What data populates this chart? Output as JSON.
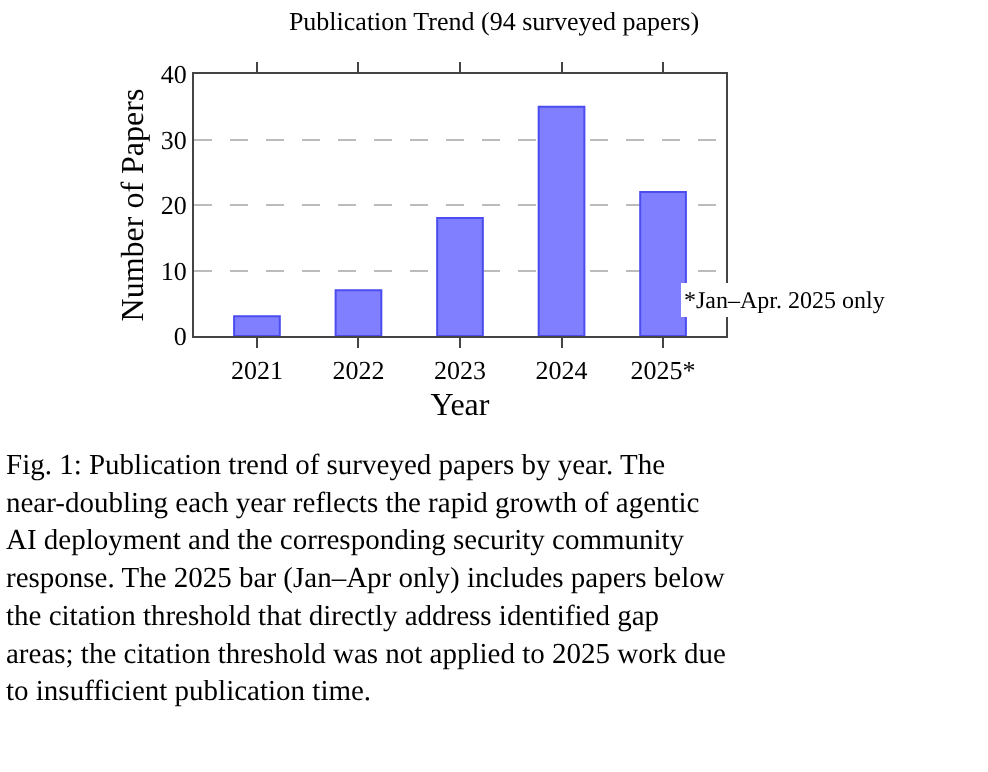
{
  "chart_data": {
    "type": "bar",
    "title": "Publication Trend (94 surveyed papers)",
    "xlabel": "Year",
    "ylabel": "Number of Papers",
    "categories": [
      "2021",
      "2022",
      "2023",
      "2024",
      "2025*"
    ],
    "values": [
      3,
      7,
      18,
      35,
      22
    ],
    "color": "#7f7fff",
    "ylim": [
      0,
      40
    ],
    "yticks": [
      0,
      10,
      20,
      30,
      40
    ],
    "grid": "y",
    "annotations": [
      "*Jan–Apr. 2025 only",
      "Fig. 1: Publication trend of surveyed papers by year. The near-doubling each year reflects the rapid growth of agentic AI deployment and the corresponding security community response. The 2025 bar (Jan–Apr only) includes papers below the citation threshold that directly address identified gap areas; the citation threshold was not applied to 2025 work due to insufficient publication time."
    ]
  }
}
